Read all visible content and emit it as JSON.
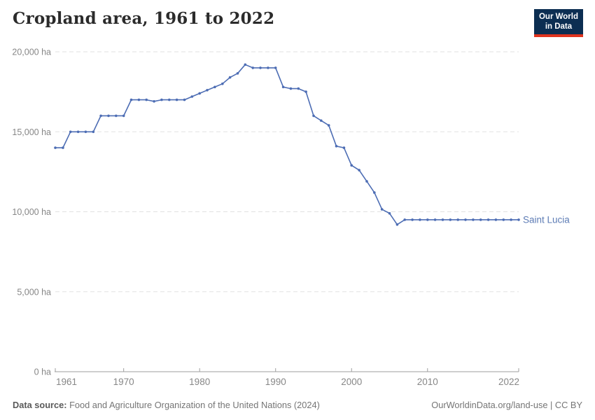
{
  "header": {
    "title": "Cropland area, 1961 to 2022"
  },
  "logo": {
    "line1": "Our World",
    "line2": "in Data",
    "bg_color": "#0c2e52",
    "accent_color": "#e0341f"
  },
  "chart_data": {
    "type": "line",
    "title": "Cropland area, 1961 to 2022",
    "xlabel": "",
    "ylabel": "",
    "unit": "ha",
    "xlim": [
      1961,
      2022
    ],
    "ylim": [
      0,
      20000
    ],
    "grid": "horizontal-dashed",
    "legend_position": "end-of-line-label",
    "x_ticks": [
      1961,
      1970,
      1980,
      1990,
      2000,
      2010,
      2022
    ],
    "y_ticks": [
      0,
      5000,
      10000,
      15000,
      20000
    ],
    "y_tick_labels": [
      "0 ha",
      "5,000 ha",
      "10,000 ha",
      "15,000 ha",
      "20,000 ha"
    ],
    "line_color": "#4d6db4",
    "entity_label_color": "#5d7cb5",
    "grid_color": "#e2e2e2",
    "axis_color": "#9e9e9e",
    "series": [
      {
        "name": "Saint Lucia",
        "x": [
          1961,
          1962,
          1963,
          1964,
          1965,
          1966,
          1967,
          1968,
          1969,
          1970,
          1971,
          1972,
          1973,
          1974,
          1975,
          1976,
          1977,
          1978,
          1979,
          1980,
          1981,
          1982,
          1983,
          1984,
          1985,
          1986,
          1987,
          1988,
          1989,
          1990,
          1991,
          1992,
          1993,
          1994,
          1995,
          1996,
          1997,
          1998,
          1999,
          2000,
          2001,
          2002,
          2003,
          2004,
          2005,
          2006,
          2007,
          2008,
          2009,
          2010,
          2011,
          2012,
          2013,
          2014,
          2015,
          2016,
          2017,
          2018,
          2019,
          2020,
          2021,
          2022
        ],
        "values": [
          14000,
          14000,
          15000,
          15000,
          15000,
          15000,
          16000,
          16000,
          16000,
          16000,
          17000,
          17000,
          17000,
          16900,
          17000,
          17000,
          17000,
          17000,
          17200,
          17400,
          17600,
          17800,
          18000,
          18400,
          18650,
          19200,
          19000,
          19000,
          19000,
          19000,
          17800,
          17700,
          17700,
          17500,
          16000,
          15700,
          15400,
          14100,
          14000,
          12900,
          12600,
          11900,
          11200,
          10150,
          9900,
          9200,
          9500,
          9500,
          9500,
          9500,
          9500,
          9500,
          9500,
          9500,
          9500,
          9500,
          9500,
          9500,
          9500,
          9500,
          9500,
          9500
        ]
      }
    ]
  },
  "footer": {
    "source_label": "Data source:",
    "source_text": " Food and Agriculture Organization of the United Nations (2024)",
    "attribution": "OurWorldinData.org/land-use | CC BY"
  }
}
